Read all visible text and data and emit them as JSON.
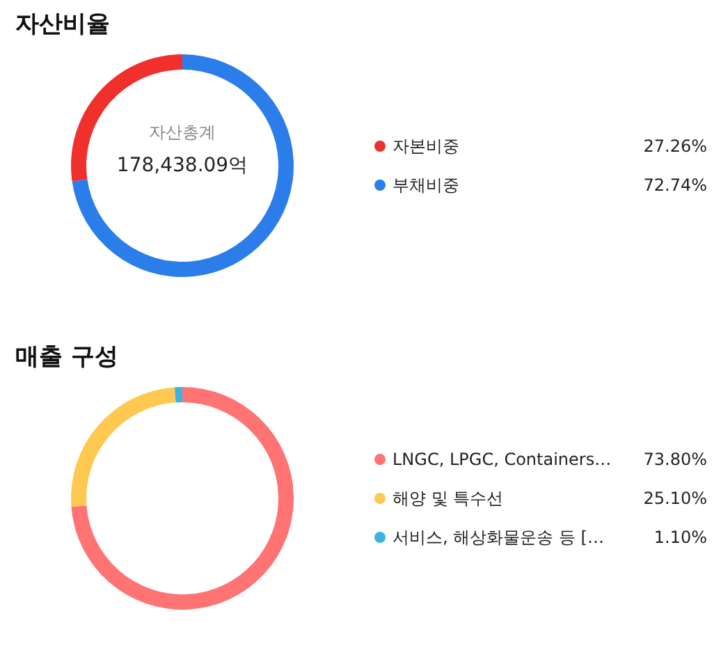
{
  "chart_data": [
    {
      "type": "donut",
      "title": "자산비율",
      "categories": [
        "자본비중",
        "부채비중"
      ],
      "values": [
        27.26,
        72.74
      ],
      "colors": [
        "#f0302c",
        "#2b7de9"
      ],
      "value_labels": [
        "27.26%",
        "72.74%"
      ],
      "legend": "right",
      "annotations": [
        "자산총계",
        "178,438.09억"
      ]
    },
    {
      "type": "donut",
      "title": "매출 구성",
      "categories": [
        "LNGC, LPGC, Containers…",
        "해양 및 특수선",
        "서비스, 해상화물운송 등 […"
      ],
      "values": [
        73.8,
        25.1,
        1.1
      ],
      "colors": [
        "#ff7373",
        "#ffc850",
        "#3db3e3"
      ],
      "value_labels": [
        "73.80%",
        "25.10%",
        "1.10%"
      ],
      "legend": "right"
    }
  ]
}
